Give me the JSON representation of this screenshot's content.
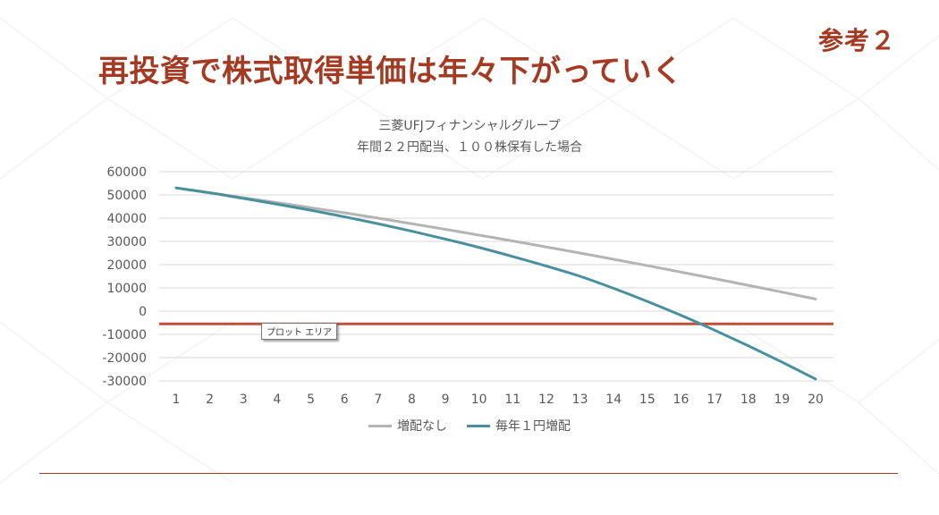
{
  "slide": {
    "ref_tag": "参考２",
    "title": "再投資で株式取得単価は年々下がっていく"
  },
  "tooltip": {
    "text": "プロット エリア"
  },
  "colors": {
    "accent": "#a53a23",
    "series_no_increase": "#b4b4b4",
    "series_increase": "#4a8f9d",
    "reference_line": "#c0503a",
    "grid": "#d9d9d9"
  },
  "chart_data": {
    "type": "line",
    "title": "三菱UFJフィナンシャルグループ",
    "subtitle": "年間２２円配当、１００株保有した場合",
    "xlabel": "",
    "ylabel": "",
    "categories": [
      "1",
      "2",
      "3",
      "4",
      "5",
      "6",
      "7",
      "8",
      "9",
      "10",
      "11",
      "12",
      "13",
      "14",
      "15",
      "16",
      "17",
      "18",
      "19",
      "20"
    ],
    "ylim": [
      -30000,
      60000
    ],
    "yticks": [
      "60000",
      "50000",
      "40000",
      "30000",
      "20000",
      "10000",
      "0",
      "-10000",
      "-20000",
      "-30000"
    ],
    "grid": true,
    "legend_position": "bottom",
    "series": [
      {
        "name": "増配なし",
        "values": [
          53000,
          50900,
          48800,
          46700,
          44500,
          42300,
          40000,
          37600,
          35200,
          32700,
          30200,
          27600,
          25000,
          22300,
          19600,
          16800,
          14000,
          11100,
          8200,
          5200
        ]
      },
      {
        "name": "毎年１円増配",
        "values": [
          53000,
          50900,
          48500,
          46000,
          43400,
          40600,
          37600,
          34400,
          31000,
          27400,
          23500,
          19400,
          15000,
          9800,
          4200,
          -1800,
          -8200,
          -14900,
          -21900,
          -29200
        ]
      }
    ],
    "reference_line": {
      "value": -5500
    }
  }
}
